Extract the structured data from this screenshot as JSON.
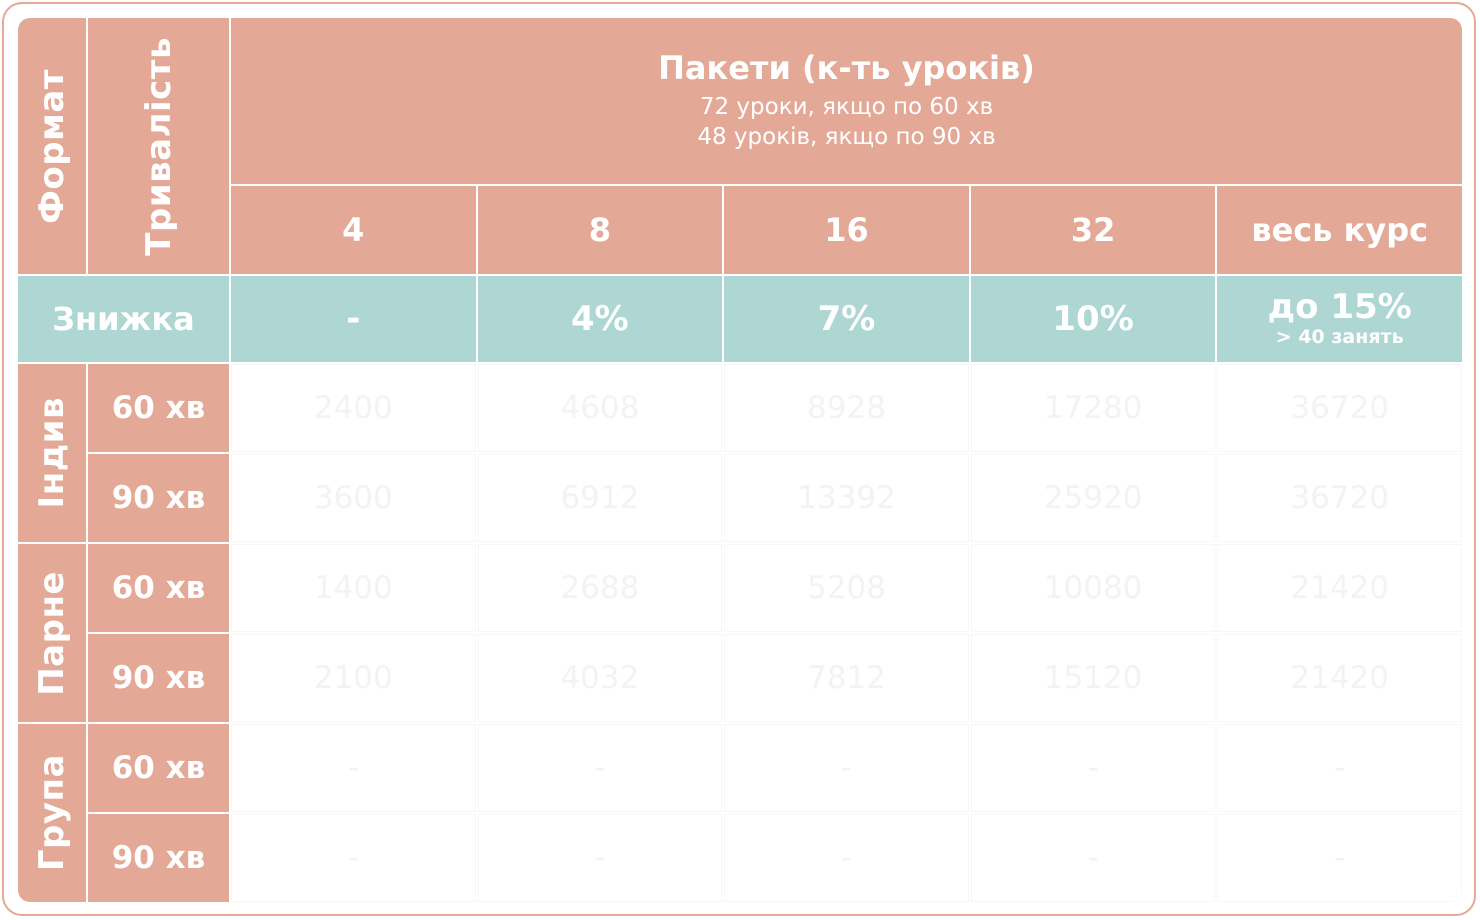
{
  "headers": {
    "format": "Формат",
    "duration": "Тривалість",
    "packages_title": "Пакети (к-ть уроків)",
    "packages_sub1": "72 уроки, якщо по 60 хв",
    "packages_sub2": "48 уроків, якщо по 90 хв"
  },
  "packages": [
    "4",
    "8",
    "16",
    "32",
    "весь курс"
  ],
  "discount": {
    "label": "Знижка",
    "values": [
      "-",
      "4%",
      "7%",
      "10%",
      "до 15%"
    ],
    "note": "> 40 занять"
  },
  "groups": [
    {
      "name": "Індив",
      "rows": [
        {
          "duration": "60 хв",
          "prices": [
            "2400",
            "4608",
            "8928",
            "17280",
            "36720"
          ]
        },
        {
          "duration": "90 хв",
          "prices": [
            "3600",
            "6912",
            "13392",
            "25920",
            "36720"
          ]
        }
      ]
    },
    {
      "name": "Парне",
      "rows": [
        {
          "duration": "60 хв",
          "prices": [
            "1400",
            "2688",
            "5208",
            "10080",
            "21420"
          ]
        },
        {
          "duration": "90 хв",
          "prices": [
            "2100",
            "4032",
            "7812",
            "15120",
            "21420"
          ]
        }
      ]
    },
    {
      "name": "Група",
      "rows": [
        {
          "duration": "60 хв",
          "prices": [
            "-",
            "-",
            "-",
            "-",
            "-"
          ]
        },
        {
          "duration": "90 хв",
          "prices": [
            "-",
            "-",
            "-",
            "-",
            "-"
          ]
        }
      ]
    }
  ],
  "colors": {
    "header": "#e4a897",
    "discount": "#aed7d4",
    "frame": "#e6a796"
  }
}
